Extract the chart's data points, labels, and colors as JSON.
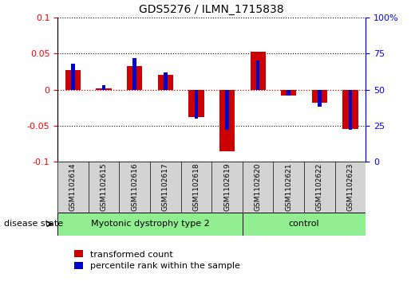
{
  "title": "GDS5276 / ILMN_1715838",
  "samples": [
    "GSM1102614",
    "GSM1102615",
    "GSM1102616",
    "GSM1102617",
    "GSM1102618",
    "GSM1102619",
    "GSM1102620",
    "GSM1102621",
    "GSM1102622",
    "GSM1102623"
  ],
  "red_values": [
    0.027,
    0.002,
    0.033,
    0.02,
    -0.038,
    -0.085,
    0.052,
    -0.008,
    -0.018,
    -0.055
  ],
  "blue_percentiles": [
    68,
    53,
    72,
    62,
    30,
    22,
    70,
    46,
    38,
    22
  ],
  "ylim_left": [
    -0.1,
    0.1
  ],
  "ylim_right": [
    0,
    100
  ],
  "yticks_left": [
    -0.1,
    -0.05,
    0.0,
    0.05,
    0.1
  ],
  "yticks_right": [
    0,
    25,
    50,
    75,
    100
  ],
  "disease_groups": [
    {
      "label": "Myotonic dystrophy type 2",
      "start": 0,
      "end": 6,
      "color": "#90EE90"
    },
    {
      "label": "control",
      "start": 6,
      "end": 10,
      "color": "#90EE90"
    }
  ],
  "red_color": "#CC0000",
  "blue_color": "#0000CC",
  "bar_width": 0.5,
  "blue_bar_width": 0.12,
  "label_area_color": "#d3d3d3",
  "legend_items": [
    "transformed count",
    "percentile rank within the sample"
  ],
  "hline_dotted_color": "#000000",
  "hline_zero_color": "#CC0000",
  "right_ytick_labels": [
    "0",
    "25",
    "50",
    "75",
    "100%"
  ]
}
